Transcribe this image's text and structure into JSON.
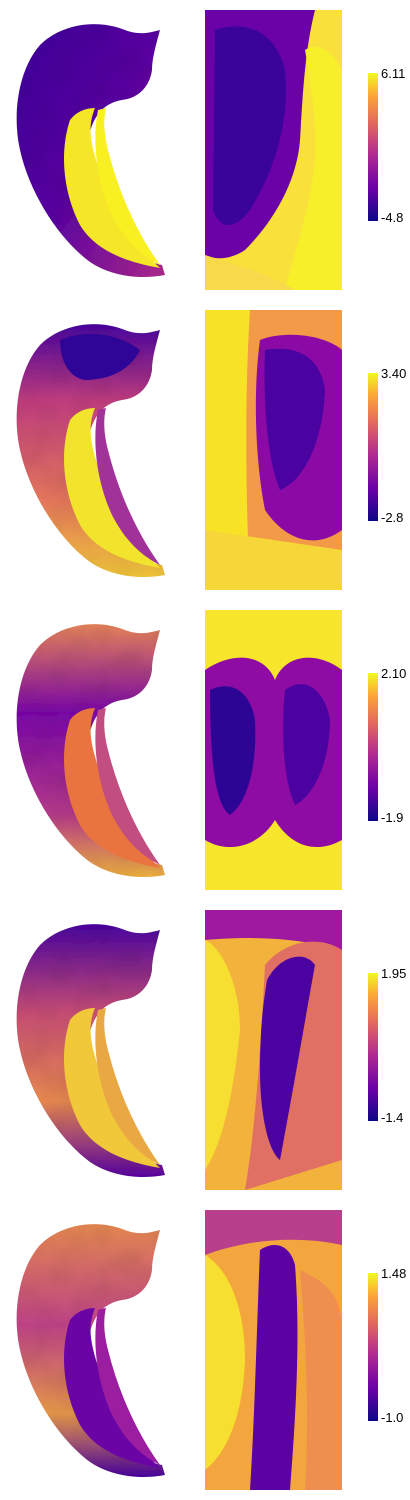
{
  "panels": [
    {
      "colorbar": {
        "max_label": "6.11",
        "min_label": "-4.8"
      }
    },
    {
      "colorbar": {
        "max_label": "3.40",
        "min_label": "-2.8"
      }
    },
    {
      "colorbar": {
        "max_label": "2.10",
        "min_label": "-1.9"
      }
    },
    {
      "colorbar": {
        "max_label": "1.95",
        "min_label": "-1.4"
      }
    },
    {
      "colorbar": {
        "max_label": "1.48",
        "min_label": "-1.0"
      }
    }
  ],
  "colors": {
    "colormap_low": "#0d0887",
    "colormap_mid": "#b12a90",
    "colormap_high": "#f0f921"
  }
}
